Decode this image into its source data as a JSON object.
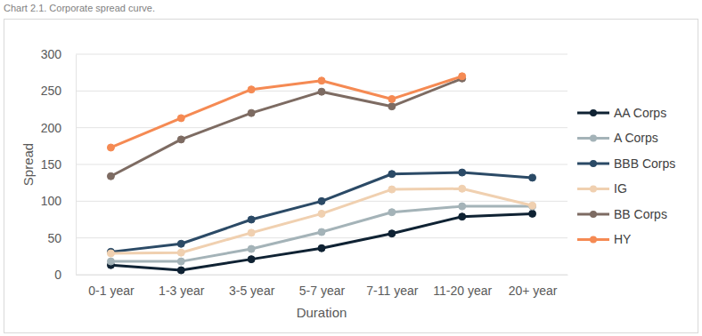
{
  "chart_data": {
    "type": "line",
    "title": "Chart 2.1. Corporate spread curve.",
    "x_label": "Duration",
    "y_label": "Spread",
    "categories": [
      "0-1 year",
      "1-3 year",
      "3-5 year",
      "5-7 year",
      "7-11 year",
      "11-20 year",
      "20+ year"
    ],
    "series": [
      {
        "name": "AA Corps",
        "color": "#0f2233",
        "marker": "circle",
        "values": [
          13,
          6,
          21,
          36,
          56,
          79,
          83
        ]
      },
      {
        "name": "A Corps",
        "color": "#a4b3b8",
        "marker": "circle",
        "values": [
          18,
          18,
          35,
          58,
          85,
          93,
          93
        ]
      },
      {
        "name": "BBB Corps",
        "color": "#2b4a66",
        "marker": "circle",
        "values": [
          31,
          42,
          75,
          100,
          137,
          139,
          132
        ]
      },
      {
        "name": "IG",
        "color": "#f0d0b0",
        "marker": "circle",
        "values": [
          29,
          30,
          57,
          83,
          116,
          117,
          94
        ]
      },
      {
        "name": "BB Corps",
        "color": "#7d6b62",
        "marker": "circle",
        "values": [
          134,
          184,
          220,
          249,
          229,
          267,
          null
        ]
      },
      {
        "name": "HY",
        "color": "#f58a53",
        "marker": "circle",
        "values": [
          173,
          213,
          252,
          264,
          239,
          270,
          null
        ]
      }
    ],
    "ylim": [
      0,
      300
    ],
    "yticks": [
      0,
      50,
      100,
      150,
      200,
      250,
      300
    ],
    "grid": true,
    "legend": "right"
  }
}
